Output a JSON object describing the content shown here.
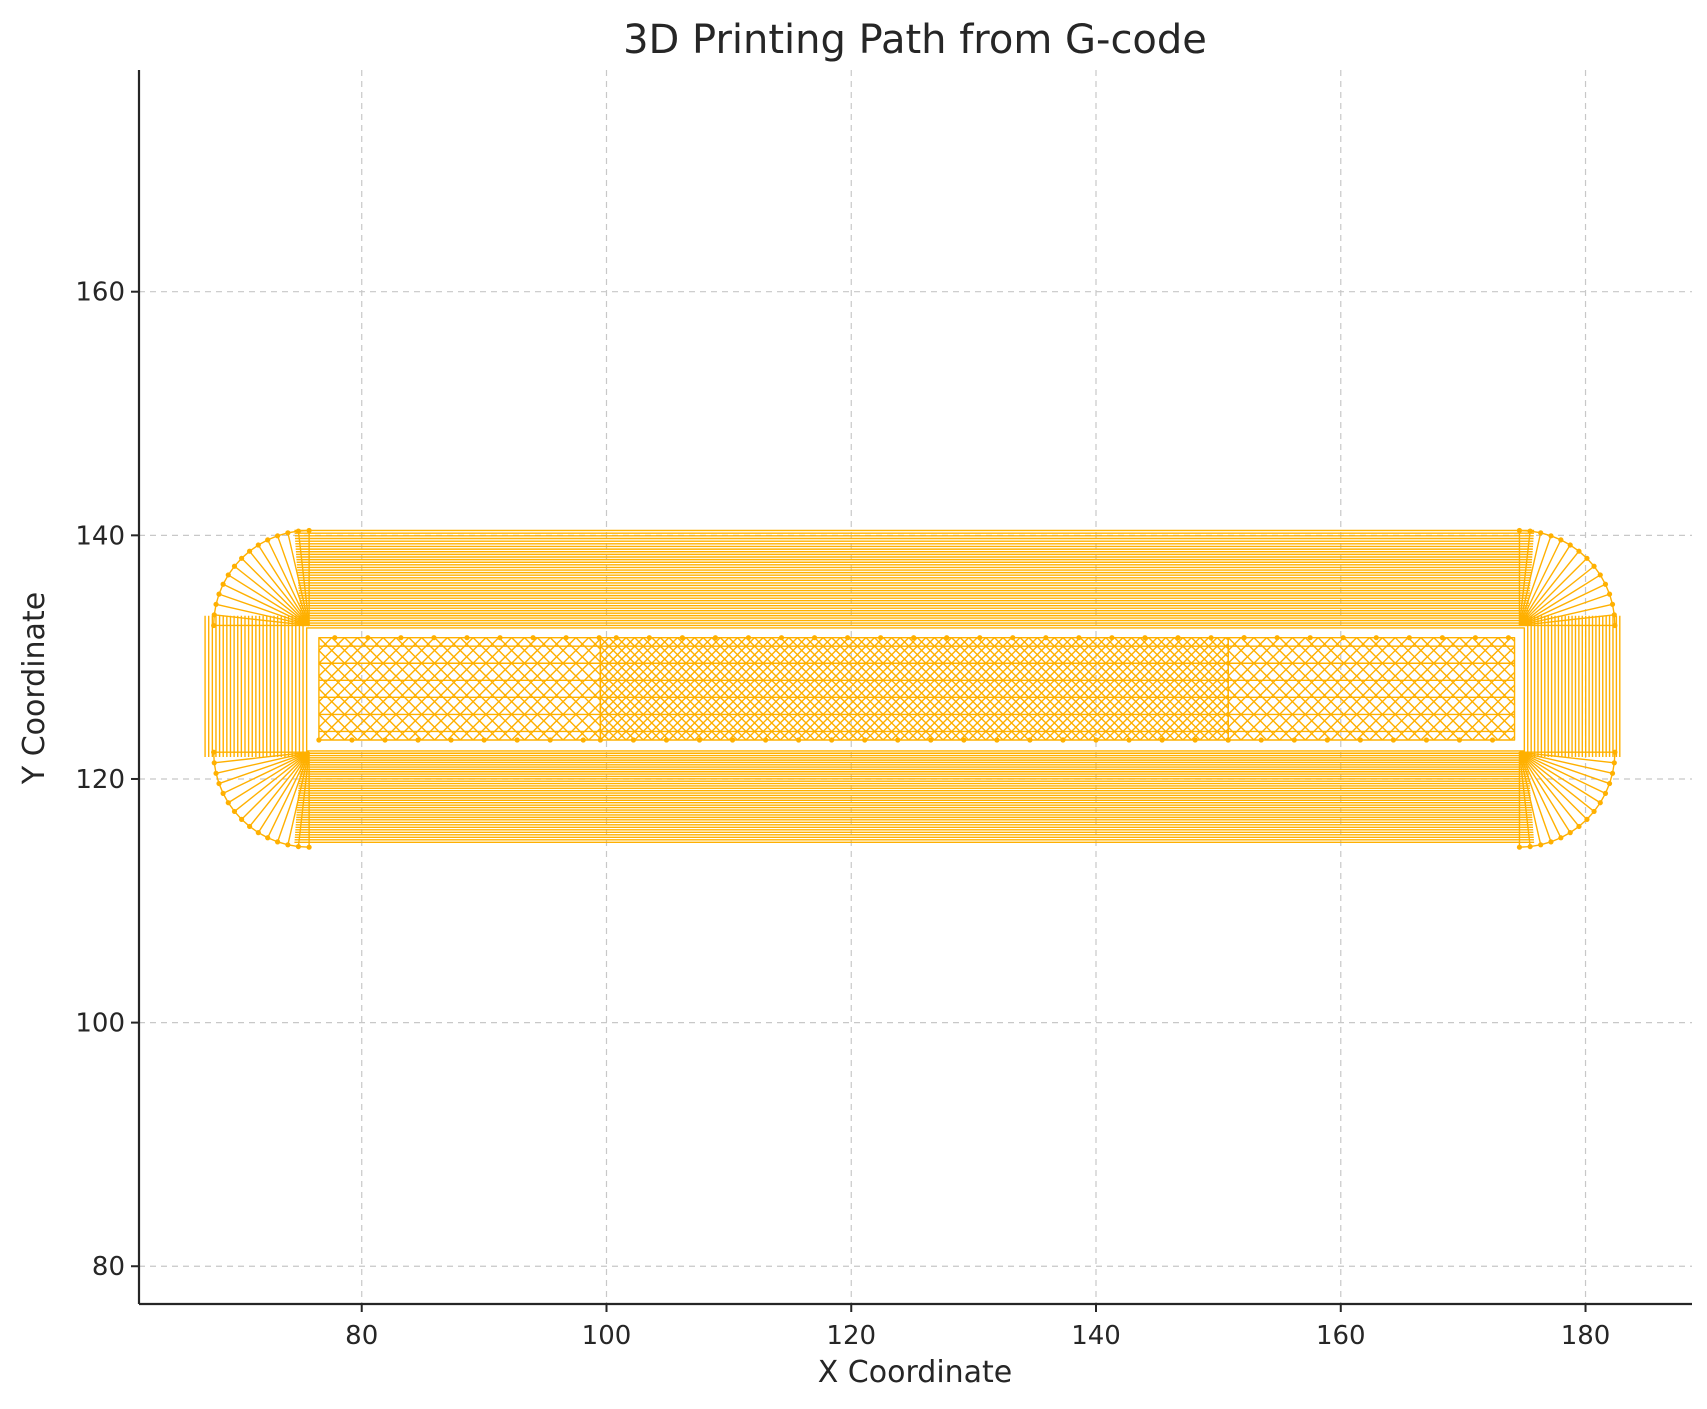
{
  "chart_data": {
    "type": "line",
    "title": "3D Printing Path from G-code",
    "xlabel": "X Coordinate",
    "ylabel": "Y Coordinate",
    "xlim": [
      61.8,
      188.7
    ],
    "ylim": [
      76.9,
      178.2
    ],
    "xticks": [
      80,
      100,
      120,
      140,
      160,
      180
    ],
    "yticks": [
      80,
      100,
      120,
      140,
      160
    ],
    "grid": true,
    "line_color": "#FFB000",
    "series": [
      {
        "name": "",
        "description_hidden": false,
        "perimeter_outer": {
          "x_min": 67.2,
          "x_max": 182.8,
          "y_min": 114.8,
          "y_max": 140.4,
          "corner_radius": 7.5,
          "loops": 38,
          "loop_step": 0.2
        },
        "inner_rect": {
          "x_min": 75.5,
          "x_max": 175.0,
          "y_min": 122.3,
          "y_max": 132.4
        },
        "infill_block": [
          {
            "x_min": 76.5,
            "x_max": 99.5,
            "y_min": 123.2,
            "y_max": 131.6,
            "pitch": 1.05
          },
          {
            "x_min": 99.5,
            "x_max": 150.8,
            "y_min": 123.2,
            "y_max": 131.6,
            "pitch": 0.7
          },
          {
            "x_min": 150.8,
            "x_max": 174.2,
            "y_min": 123.2,
            "y_max": 131.6,
            "pitch": 1.05
          }
        ]
      }
    ]
  }
}
